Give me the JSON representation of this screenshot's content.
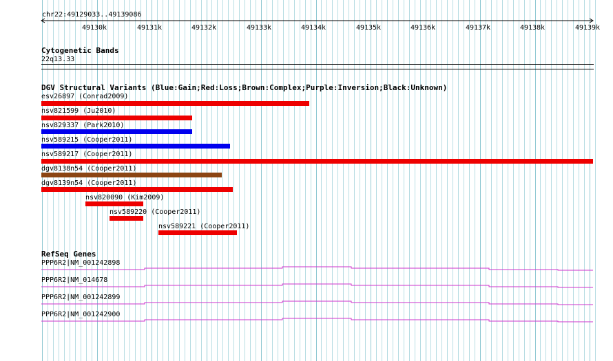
{
  "locus": "chr22:49129033..49139086",
  "ruler": {
    "ticks": [
      "49130k",
      "49131k",
      "49132k",
      "49133k",
      "49134k",
      "49135k",
      "49136k",
      "49137k",
      "49138k",
      "49139k"
    ]
  },
  "cytobands": {
    "title": "Cytogenetic Bands",
    "band": "22q13.33"
  },
  "dgv": {
    "title": "DGV Structural Variants (Blue:Gain;Red:Loss;Brown:Complex;Purple:Inversion;Black:Unknown)",
    "colors": {
      "gain": "#0000ee",
      "loss": "#ee0000",
      "complex": "#8b4513",
      "inversion": "#800080",
      "unknown": "#000000"
    },
    "variants": [
      {
        "label": "esv26897 (Conrad2009)",
        "type": "loss"
      },
      {
        "label": "nsv821599 (Ju2010)",
        "type": "loss"
      },
      {
        "label": "nsv829337 (Park2010)",
        "type": "gain"
      },
      {
        "label": "nsv589215 (Cooper2011)",
        "type": "gain"
      },
      {
        "label": "nsv589217 (Cooper2011)",
        "type": "loss"
      },
      {
        "label": "dgv8138n54 (Cooper2011)",
        "type": "complex"
      },
      {
        "label": "dgv8139n54 (Cooper2011)",
        "type": "loss"
      },
      {
        "label": "nsv820090 (Kim2009)",
        "type": "loss"
      },
      {
        "label": "nsv589220 (Cooper2011)",
        "type": "loss"
      },
      {
        "label": "nsv589221 (Cooper2011)",
        "type": "loss"
      }
    ]
  },
  "refseq": {
    "title": "RefSeq Genes",
    "color": "#cc33cc",
    "genes": [
      {
        "label": "PPP6R2|NM_001242898"
      },
      {
        "label": "PPP6R2|NM_014678"
      },
      {
        "label": "PPP6R2|NM_001242899"
      },
      {
        "label": "PPP6R2|NM_001242900"
      }
    ]
  },
  "colors": {
    "grid": "#b7dde3",
    "grid_major": "#8fc8d2"
  }
}
